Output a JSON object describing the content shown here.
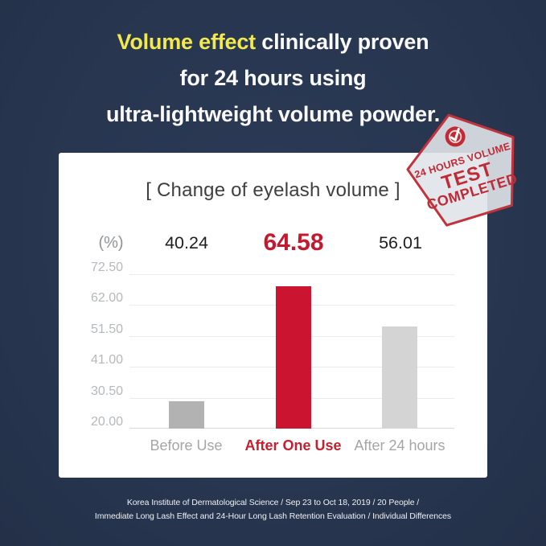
{
  "colors": {
    "background": "#283650",
    "card": "#ffffff",
    "accent_red": "#c5182e",
    "highlight_yellow": "#f2e94e",
    "stamp_red": "#bf2b36",
    "stamp_fill": "#e0e4e9"
  },
  "header": {
    "line1_highlight": "Volume effect",
    "line1_rest": " clinically proven",
    "line2": "for 24 hours using",
    "line3": "ultra-lightweight volume powder."
  },
  "stamp": {
    "line1": "24 HOURS VOLUME",
    "line2": "TEST",
    "line3": "COMPLETED",
    "icon": "check-circle"
  },
  "chart_data": {
    "type": "bar",
    "title": "[ Change of eyelash volume ]",
    "unit_label": "(%)",
    "categories": [
      "Before Use",
      "After One Use",
      "After 24 hours"
    ],
    "values": [
      40.24,
      64.58,
      56.01
    ],
    "value_labels": [
      "40.24",
      "64.58",
      "56.01"
    ],
    "highlighted_index": 1,
    "y_ticks": [
      72.5,
      62.0,
      51.5,
      41.0,
      30.5,
      20.0
    ],
    "y_tick_labels": [
      "72.50",
      "62.00",
      "51.50",
      "41.00",
      "30.50",
      "20.00"
    ],
    "baseline_value": 20.0,
    "displayed_bar_top_values": [
      29.3,
      68.5,
      54.6
    ],
    "bar_colors": [
      "#b2b2b2",
      "#ca1430",
      "#d4d4d4"
    ],
    "grid": true,
    "legend": false,
    "xlabel": "",
    "ylabel": "(%)"
  },
  "footer": {
    "line1": "Korea Institute of Dermatological Science / Sep 23 to Oct 18, 2019 / 20 People /",
    "line2": "Immediate Long Lash Effect and 24-Hour Long Lash Retention Evaluation / Individual Differences"
  }
}
